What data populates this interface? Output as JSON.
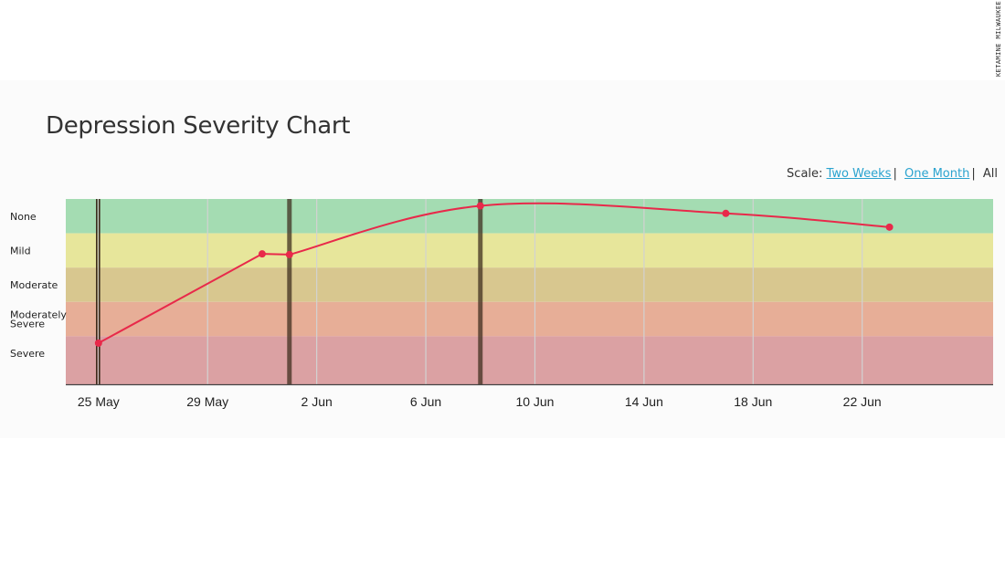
{
  "watermark": "KETAMINE MILWAUKEE",
  "page": {
    "title": "Depression Severity Chart",
    "scale": {
      "label": "Scale:",
      "options": [
        "Two Weeks",
        "One Month",
        "All"
      ],
      "separator": "|"
    }
  },
  "colors": {
    "line": "#e8294a",
    "marker": "#e8294a",
    "session_marker": "#3a2a1a",
    "bands": [
      "#a4dcb2",
      "#e7e69b",
      "#d8c78f",
      "#e7ae97",
      "#dba1a3"
    ],
    "gridline": "#d2d2d2",
    "axis": "#444444"
  },
  "chart_data": {
    "type": "line",
    "title": "Depression Severity Chart",
    "xlabel": "",
    "ylabel": "",
    "x_tick_labels": [
      "25 May",
      "29 May",
      "2 Jun",
      "6 Jun",
      "10 Jun",
      "14 Jun",
      "18 Jun",
      "22 Jun"
    ],
    "x_tick_dates": [
      "05-25",
      "05-29",
      "06-02",
      "06-06",
      "06-10",
      "06-14",
      "06-18",
      "06-22"
    ],
    "xlim": [
      "05-23.8",
      "06-26.8"
    ],
    "severity_bands": [
      {
        "label": "None",
        "from": 0,
        "to": 1
      },
      {
        "label": "Mild",
        "from": 1,
        "to": 2
      },
      {
        "label": "Moderate",
        "from": 2,
        "to": 3
      },
      {
        "label": "Moderately Severe",
        "from": 3,
        "to": 4
      },
      {
        "label": "Severe",
        "from": 4,
        "to": 5.4
      }
    ],
    "ylim": [
      0,
      5.4
    ],
    "y_inverted": true,
    "series": [
      {
        "points": [
          {
            "x": "05-25",
            "y": 4.2
          },
          {
            "x": "05-31",
            "y": 1.6
          },
          {
            "x": "06-01",
            "y": 1.62
          },
          {
            "x": "06-08",
            "y": 0.2
          },
          {
            "x": "06-17",
            "y": 0.42
          },
          {
            "x": "06-23",
            "y": 0.82
          }
        ]
      }
    ],
    "session_markers": [
      "05-25",
      "06-01",
      "06-08"
    ],
    "smooth": true,
    "grid": true,
    "legend": "none"
  }
}
